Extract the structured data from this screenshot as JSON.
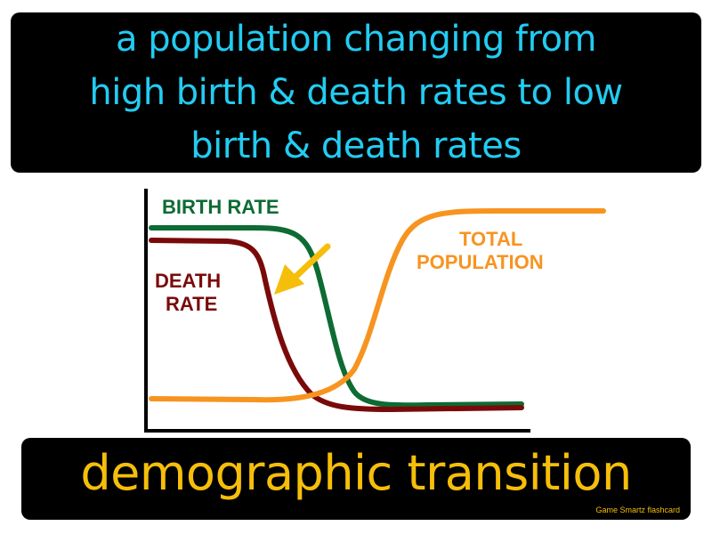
{
  "definition": {
    "line1": "a population changing from",
    "line2": "high birth & death rates to low",
    "line3": "birth & death rates"
  },
  "diagram": {
    "birth_rate_label": "BIRTH RATE",
    "death_rate_label_line1": "DEATH",
    "death_rate_label_line2": "RATE",
    "total_population_label_line1": "TOTAL",
    "total_population_label_line2": "POPULATION",
    "colors": {
      "birth_rate": "#0d6b33",
      "death_rate": "#7a0a0a",
      "total_population": "#f79420",
      "arrow": "#f5be0a",
      "axes": "#000000"
    }
  },
  "term": "demographic transition",
  "credit": "Game Smartz flashcard",
  "colors": {
    "definition_text": "#22ccf2",
    "term_text": "#f5be0a",
    "box_background": "#000000"
  }
}
